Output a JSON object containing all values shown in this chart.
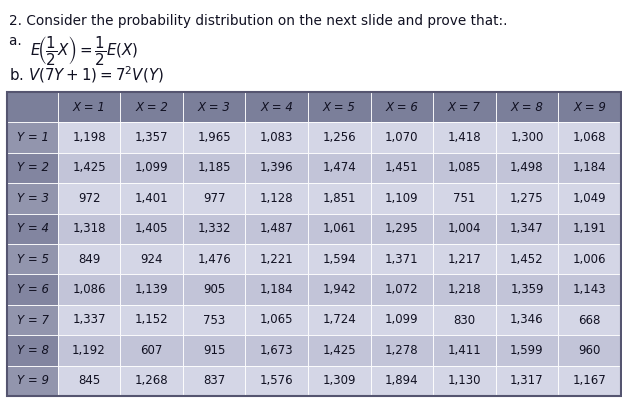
{
  "title_line1": "2. Consider the probability distribution on the next slide and prove that:.",
  "col_headers": [
    "X = 1",
    "X = 2",
    "X = 3",
    "X = 4",
    "X = 5",
    "X = 6",
    "X = 7",
    "X = 8",
    "X = 9"
  ],
  "row_headers": [
    "Y = 1",
    "Y = 2",
    "Y = 3",
    "Y = 4",
    "Y = 5",
    "Y = 6",
    "Y = 7",
    "Y = 8",
    "Y = 9"
  ],
  "table_data": [
    [
      1198,
      1357,
      1965,
      1083,
      1256,
      1070,
      1418,
      1300,
      1068
    ],
    [
      1425,
      1099,
      1185,
      1396,
      1474,
      1451,
      1085,
      1498,
      1184
    ],
    [
      972,
      1401,
      977,
      1128,
      1851,
      1109,
      751,
      1275,
      1049
    ],
    [
      1318,
      1405,
      1332,
      1487,
      1061,
      1295,
      1004,
      1347,
      1191
    ],
    [
      849,
      924,
      1476,
      1221,
      1594,
      1371,
      1217,
      1452,
      1006
    ],
    [
      1086,
      1139,
      905,
      1184,
      1942,
      1072,
      1218,
      1359,
      1143
    ],
    [
      1337,
      1152,
      753,
      1065,
      1724,
      1099,
      830,
      1346,
      668
    ],
    [
      1192,
      607,
      915,
      1673,
      1425,
      1278,
      1411,
      1599,
      960
    ],
    [
      845,
      1268,
      837,
      1576,
      1309,
      1894,
      1130,
      1317,
      1167
    ]
  ],
  "header_bg": "#7B7F9A",
  "row_header_bg_odd": "#9295AD",
  "row_header_bg_even": "#8285A0",
  "odd_row_bg": "#D4D6E6",
  "even_row_bg": "#C2C4D8",
  "outer_border": "#555570",
  "text_color": "#111122",
  "header_text_color": "#111122",
  "bg_color": "#ffffff",
  "title_fontsize": 9.8,
  "table_fontsize": 8.5
}
